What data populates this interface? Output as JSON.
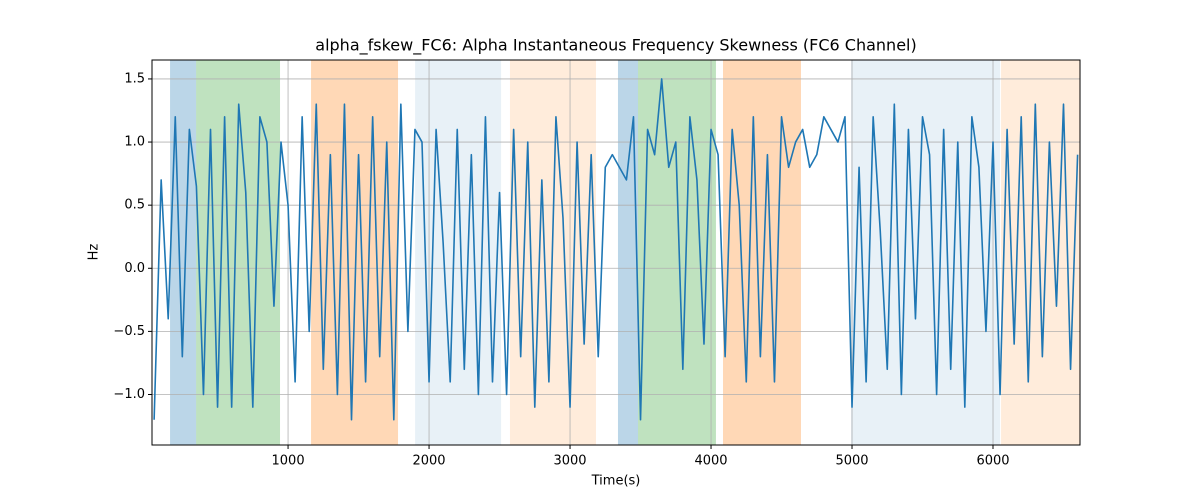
{
  "chart_data": {
    "type": "line",
    "title": "alpha_fskew_FC6: Alpha Instantaneous Frequency Skewness (FC6 Channel)",
    "x_label": "Time(s)",
    "y_label": "Hz",
    "xlim": [
      35,
      6617
    ],
    "ylim": [
      -1.4,
      1.65
    ],
    "xticks": [
      1000,
      2000,
      3000,
      4000,
      5000,
      6000
    ],
    "yticks": [
      {
        "value": -1,
        "label": "−1.0"
      },
      {
        "value": -0.5,
        "label": "−0.5"
      },
      {
        "value": 0,
        "label": "0.0"
      },
      0.5,
      {
        "value": 1,
        "label": "1.0"
      },
      1.5
    ],
    "grid": true,
    "spans": [
      {
        "start": 163,
        "end": 348,
        "color": "#1f77b4",
        "alpha": 0.3
      },
      {
        "start": 348,
        "end": 943,
        "color": "#2ca02c",
        "alpha": 0.3
      },
      {
        "start": 1163,
        "end": 1780,
        "color": "#ff7f0e",
        "alpha": 0.3
      },
      {
        "start": 1901,
        "end": 2511,
        "color": "#1f77b4",
        "alpha": 0.1
      },
      {
        "start": 2574,
        "end": 3184,
        "color": "#ff7f0e",
        "alpha": 0.15
      },
      {
        "start": 3340,
        "end": 3482,
        "color": "#1f77b4",
        "alpha": 0.3
      },
      {
        "start": 3482,
        "end": 4035,
        "color": "#2ca02c",
        "alpha": 0.3
      },
      {
        "start": 4085,
        "end": 4638,
        "color": "#ff7f0e",
        "alpha": 0.3
      },
      {
        "start": 4993,
        "end": 6050,
        "color": "#1f77b4",
        "alpha": 0.1
      },
      {
        "start": 6057,
        "end": 6617,
        "color": "#ff7f0e",
        "alpha": 0.15
      }
    ],
    "x": [
      50,
      100,
      150,
      200,
      250,
      300,
      350,
      400,
      450,
      500,
      550,
      600,
      650,
      700,
      750,
      800,
      850,
      900,
      950,
      1000,
      1050,
      1100,
      1150,
      1200,
      1250,
      1300,
      1350,
      1400,
      1450,
      1500,
      1550,
      1600,
      1650,
      1700,
      1750,
      1800,
      1850,
      1900,
      1950,
      2000,
      2050,
      2100,
      2150,
      2200,
      2250,
      2300,
      2350,
      2400,
      2450,
      2500,
      2550,
      2600,
      2650,
      2700,
      2750,
      2800,
      2850,
      2900,
      2950,
      3000,
      3050,
      3100,
      3150,
      3200,
      3250,
      3300,
      3350,
      3400,
      3450,
      3500,
      3550,
      3600,
      3650,
      3700,
      3750,
      3800,
      3850,
      3900,
      3950,
      4000,
      4050,
      4100,
      4150,
      4200,
      4250,
      4300,
      4350,
      4400,
      4450,
      4500,
      4550,
      4600,
      4650,
      4700,
      4750,
      4800,
      4850,
      4900,
      4950,
      5000,
      5050,
      5100,
      5150,
      5200,
      5250,
      5300,
      5350,
      5400,
      5450,
      5500,
      5550,
      5600,
      5650,
      5700,
      5750,
      5800,
      5850,
      5900,
      5950,
      6000,
      6050,
      6100,
      6150,
      6200,
      6250,
      6300,
      6350,
      6400,
      6450,
      6500,
      6550,
      6600
    ],
    "series": [
      {
        "color": "#1f77b4",
        "values": [
          -1.2,
          0.7,
          -0.4,
          1.2,
          -0.7,
          1.1,
          0.65,
          -1.0,
          1.1,
          -1.1,
          1.2,
          -1.1,
          1.3,
          0.6,
          -1.1,
          1.2,
          1.0,
          -0.3,
          1.0,
          0.5,
          -0.9,
          1.2,
          -0.5,
          1.3,
          -0.8,
          0.9,
          -1.0,
          1.3,
          -1.2,
          0.9,
          -0.9,
          1.2,
          -0.7,
          1.0,
          -1.2,
          1.3,
          -0.5,
          1.1,
          1.0,
          -0.9,
          1.1,
          0.2,
          -0.9,
          1.1,
          -0.8,
          0.9,
          -1.0,
          1.2,
          -0.9,
          0.6,
          -1.0,
          1.1,
          -0.7,
          1.0,
          -1.1,
          0.7,
          -0.9,
          1.2,
          0.4,
          -1.1,
          1.0,
          -0.6,
          0.9,
          -0.7,
          0.8,
          0.9,
          0.8,
          0.7,
          1.2,
          -1.2,
          1.1,
          0.9,
          1.5,
          0.8,
          1.0,
          -0.8,
          1.2,
          0.7,
          -0.6,
          1.1,
          0.9,
          -0.7,
          1.1,
          0.5,
          -0.9,
          1.2,
          -0.7,
          0.9,
          -0.9,
          1.2,
          0.8,
          1.0,
          1.1,
          0.8,
          0.9,
          1.2,
          1.1,
          1.0,
          1.2,
          -1.1,
          0.8,
          -0.9,
          1.2,
          0.3,
          -0.8,
          1.3,
          -1.0,
          1.1,
          -0.4,
          1.2,
          0.9,
          -1.0,
          1.1,
          -0.8,
          1.0,
          -1.1,
          1.2,
          0.8,
          -0.5,
          1.0,
          -1.0,
          1.1,
          -0.6,
          1.2,
          -0.9,
          1.3,
          -0.7,
          1.0,
          -0.3,
          1.3,
          -0.8,
          0.9
        ]
      }
    ]
  }
}
